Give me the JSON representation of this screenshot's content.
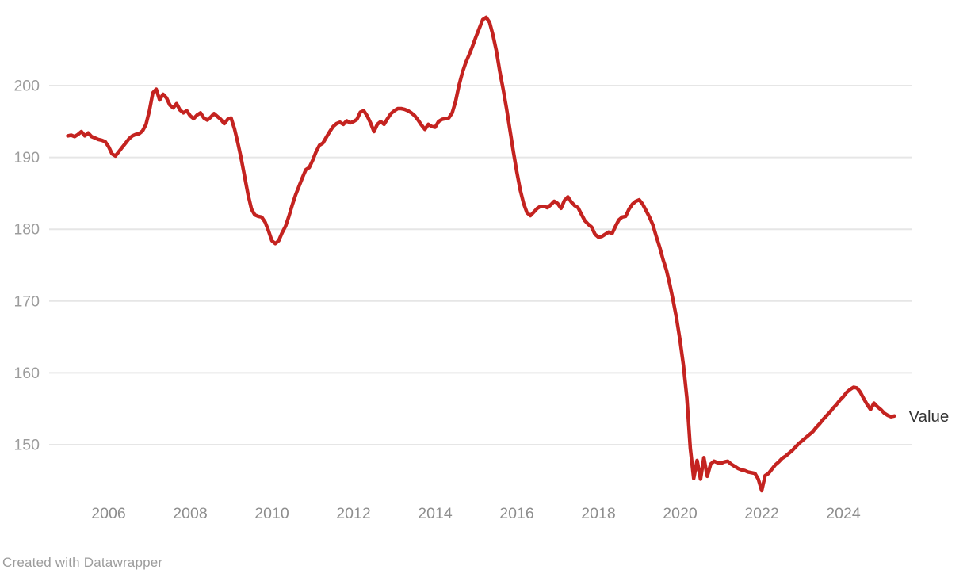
{
  "app": {
    "attribution": "Created with Datawrapper"
  },
  "colors": {
    "background": "#ffffff",
    "line": "#c42320",
    "grid": "#e6e6e6",
    "y_tick_text": "#9c9c9c",
    "x_tick_text": "#8e8e8e",
    "series_label_text": "#333333",
    "attribution_text": "#9c9c9c"
  },
  "chart_data": {
    "type": "line",
    "title": "",
    "xlabel": "",
    "ylabel": "",
    "grid": "horizontal-only",
    "legend_position": "end-of-line",
    "x_ticks": [
      2006,
      2008,
      2010,
      2012,
      2014,
      2016,
      2018,
      2020,
      2022,
      2024
    ],
    "y_ticks": [
      150,
      160,
      170,
      180,
      190,
      200
    ],
    "x_range_years": [
      2004.85,
      2025.45
    ],
    "y_range": [
      143,
      210.5
    ],
    "series": [
      {
        "name": "Value",
        "start": "2005-01",
        "frequency": "monthly",
        "values": [
          193.0,
          193.1,
          192.9,
          193.2,
          193.6,
          193.0,
          193.4,
          192.9,
          192.7,
          192.5,
          192.4,
          192.2,
          191.5,
          190.5,
          190.2,
          190.8,
          191.4,
          192.0,
          192.6,
          193.0,
          193.2,
          193.3,
          193.7,
          194.6,
          196.5,
          199.0,
          199.5,
          198.0,
          198.8,
          198.3,
          197.3,
          196.9,
          197.5,
          196.6,
          196.2,
          196.5,
          195.8,
          195.4,
          195.9,
          196.2,
          195.5,
          195.2,
          195.6,
          196.1,
          195.7,
          195.3,
          194.7,
          195.3,
          195.5,
          194.0,
          192.0,
          189.8,
          187.3,
          184.8,
          182.8,
          182.0,
          181.8,
          181.7,
          181.0,
          179.8,
          178.4,
          178.0,
          178.4,
          179.5,
          180.4,
          181.8,
          183.4,
          184.8,
          186.0,
          187.2,
          188.3,
          188.6,
          189.6,
          190.8,
          191.7,
          192.0,
          192.8,
          193.6,
          194.3,
          194.7,
          194.9,
          194.6,
          195.1,
          194.8,
          195.0,
          195.3,
          196.3,
          196.5,
          195.8,
          194.8,
          193.6,
          194.6,
          195.0,
          194.6,
          195.4,
          196.1,
          196.5,
          196.8,
          196.8,
          196.7,
          196.5,
          196.2,
          195.8,
          195.2,
          194.5,
          193.9,
          194.6,
          194.3,
          194.2,
          195.0,
          195.3,
          195.4,
          195.5,
          196.2,
          197.8,
          200.0,
          201.8,
          203.2,
          204.3,
          205.5,
          206.8,
          208.0,
          209.2,
          209.5,
          208.8,
          207.0,
          204.8,
          202.0,
          199.5,
          196.8,
          193.8,
          190.8,
          188.0,
          185.5,
          183.6,
          182.3,
          181.9,
          182.4,
          182.9,
          183.2,
          183.2,
          183.0,
          183.4,
          183.9,
          183.6,
          182.9,
          184.0,
          184.5,
          183.8,
          183.3,
          183.0,
          182.1,
          181.2,
          180.7,
          180.3,
          179.3,
          178.9,
          179.0,
          179.3,
          179.6,
          179.4,
          180.4,
          181.3,
          181.7,
          181.8,
          182.8,
          183.5,
          183.9,
          184.1,
          183.5,
          182.6,
          181.7,
          180.6,
          179.0,
          177.5,
          175.8,
          174.3,
          172.3,
          170.0,
          167.5,
          164.5,
          161.0,
          156.5,
          149.5,
          145.3,
          147.8,
          145.2,
          148.2,
          145.6,
          147.3,
          147.7,
          147.5,
          147.4,
          147.6,
          147.7,
          147.3,
          147.0,
          146.7,
          146.5,
          146.4,
          146.2,
          146.1,
          146.0,
          145.2,
          143.6,
          145.7,
          146.0,
          146.6,
          147.2,
          147.6,
          148.1,
          148.4,
          148.8,
          149.2,
          149.7,
          150.2,
          150.6,
          151.0,
          151.4,
          151.8,
          152.4,
          152.9,
          153.5,
          154.0,
          154.5,
          155.1,
          155.6,
          156.2,
          156.7,
          157.3,
          157.7,
          158.0,
          157.9,
          157.3,
          156.4,
          155.6,
          154.9,
          155.8,
          155.3,
          154.9,
          154.4,
          154.1,
          153.9,
          154.0
        ]
      }
    ]
  }
}
